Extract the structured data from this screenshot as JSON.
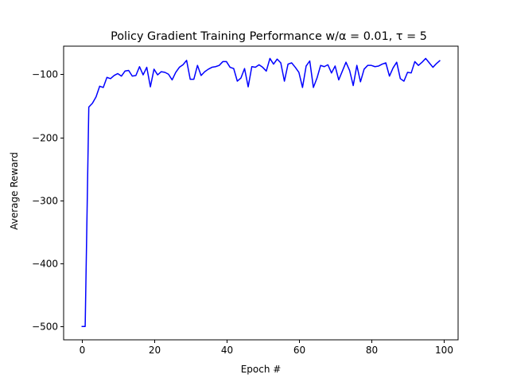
{
  "chart_data": {
    "type": "line",
    "title": "Policy Gradient Training Performance w/α = 0.01, τ = 5",
    "xlabel": "Epoch #",
    "ylabel": "Average Reward",
    "xlim": [
      -4.95,
      103.95
    ],
    "ylim": [
      -521.1,
      -55.5
    ],
    "xticks": [
      0,
      20,
      40,
      60,
      80,
      100
    ],
    "yticks": [
      -500,
      -400,
      -300,
      -200,
      -100
    ],
    "xtick_labels": [
      "0",
      "20",
      "40",
      "60",
      "80",
      "100"
    ],
    "ytick_labels": [
      "−500",
      "−400",
      "−300",
      "−200",
      "−100"
    ],
    "grid": false,
    "line_color": "#0000ff",
    "series": [
      {
        "x": [
          0,
          1,
          2,
          3,
          4,
          5,
          6,
          7,
          8,
          9,
          10,
          11,
          12,
          13,
          14,
          15,
          16,
          17,
          18,
          19,
          20,
          21,
          22,
          23,
          24,
          25,
          26,
          27,
          28,
          29,
          30,
          31,
          32,
          33,
          34,
          35,
          36,
          37,
          38,
          39,
          40,
          41,
          42,
          43,
          44,
          45,
          46,
          47,
          48,
          49,
          50,
          51,
          52,
          53,
          54,
          55,
          56,
          57,
          58,
          59,
          60,
          61,
          62,
          63,
          64,
          65,
          66,
          67,
          68,
          69,
          70,
          71,
          72,
          73,
          74,
          75,
          76,
          77,
          78,
          79,
          80,
          81,
          82,
          83,
          84,
          85,
          86,
          87,
          88,
          89,
          90,
          91,
          92,
          93,
          94,
          95,
          96,
          97,
          98,
          99
        ],
        "values": [
          -500,
          -500,
          -152,
          -146,
          -136,
          -119,
          -121,
          -105,
          -107,
          -102,
          -99,
          -103,
          -95,
          -94,
          -103,
          -102,
          -88,
          -101,
          -89,
          -120,
          -92,
          -101,
          -96,
          -97,
          -100,
          -109,
          -97,
          -89,
          -85,
          -78,
          -108,
          -108,
          -86,
          -102,
          -96,
          -92,
          -89,
          -88,
          -86,
          -80,
          -80,
          -89,
          -91,
          -111,
          -106,
          -91,
          -120,
          -88,
          -89,
          -85,
          -89,
          -95,
          -75,
          -84,
          -76,
          -82,
          -111,
          -84,
          -82,
          -89,
          -97,
          -121,
          -87,
          -79,
          -121,
          -106,
          -86,
          -88,
          -85,
          -98,
          -87,
          -109,
          -95,
          -81,
          -94,
          -118,
          -86,
          -112,
          -92,
          -86,
          -86,
          -88,
          -87,
          -84,
          -82,
          -103,
          -90,
          -81,
          -107,
          -111,
          -97,
          -98,
          -80,
          -86,
          -81,
          -75,
          -82,
          -89,
          -83,
          -78
        ]
      }
    ]
  }
}
